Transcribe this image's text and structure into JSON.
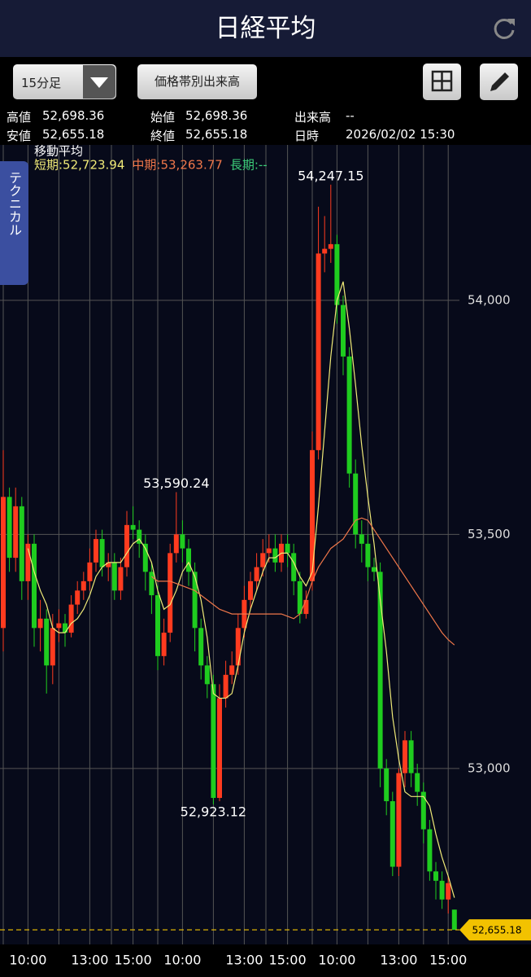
{
  "header": {
    "title": "日経平均"
  },
  "toolbar": {
    "interval": "15分足",
    "volume_button": "価格帯別出来高"
  },
  "info": {
    "rows": [
      [
        {
          "label": "高値",
          "value": "52,698.36"
        },
        {
          "label": "始値",
          "value": "52,698.36"
        },
        {
          "label": "出来高",
          "value": "--"
        }
      ],
      [
        {
          "label": "安値",
          "value": "52,655.18"
        },
        {
          "label": "終値",
          "value": "52,655.18"
        },
        {
          "label": "日時",
          "value": "2026/02/02 15:30"
        }
      ]
    ]
  },
  "side_tab": "テクニカル",
  "chart_data": {
    "type": "candlestick",
    "ma_title": "移動平均",
    "up_color": "#ff3b1f",
    "down_color": "#1fcc1f",
    "categories": [
      null,
      null,
      null,
      null,
      "10:00",
      null,
      null,
      null,
      null,
      null,
      null,
      null,
      null,
      null,
      "13:00",
      null,
      null,
      null,
      null,
      null,
      null,
      "15:00",
      null,
      null,
      null,
      null,
      null,
      null,
      null,
      "10:00",
      null,
      null,
      null,
      null,
      null,
      null,
      null,
      null,
      null,
      "13:00",
      null,
      null,
      null,
      null,
      null,
      null,
      "15:00",
      null,
      null,
      null,
      null,
      null,
      null,
      null,
      "10:00",
      null,
      null,
      null,
      null,
      null,
      null,
      null,
      null,
      null,
      "13:00",
      null,
      null,
      null,
      null,
      null,
      null,
      null,
      "15:00",
      null
    ],
    "open": [
      53300,
      53580,
      53450,
      53560,
      53400,
      53480,
      53300,
      53320,
      53220,
      53300,
      53310,
      53290,
      53350,
      53380,
      53400,
      53440,
      53490,
      53430,
      53440,
      53380,
      53430,
      53520,
      53510,
      53480,
      53420,
      53370,
      53240,
      53290,
      53460,
      53500,
      53470,
      53420,
      53300,
      53220,
      53180,
      52937,
      53150,
      53200,
      53220,
      53300,
      53360,
      53400,
      53430,
      53460,
      53470,
      53440,
      53480,
      53460,
      53400,
      53330,
      53400,
      53680,
      54100,
      54110,
      54120,
      53990,
      53880,
      53630,
      53500,
      53480,
      53430,
      53420,
      53000,
      52930,
      52790,
      52990,
      53060,
      52990,
      52950,
      52870,
      52780,
      52760,
      52720,
      52698.36
    ],
    "high": [
      53680,
      53600,
      53600,
      53580,
      53500,
      53500,
      53360,
      53340,
      53330,
      53340,
      53330,
      53370,
      53400,
      53420,
      53470,
      53510,
      53510,
      53460,
      53460,
      53450,
      53550,
      53560,
      53530,
      53500,
      53440,
      53390,
      53320,
      53480,
      53590.24,
      53530,
      53490,
      53440,
      53320,
      53240,
      53200,
      53180,
      53230,
      53250,
      53330,
      53390,
      53420,
      53460,
      53490,
      53500,
      53500,
      53500,
      53500,
      53480,
      53420,
      53380,
      53720,
      54200,
      54180,
      54247.15,
      54140,
      54010,
      53900,
      53660,
      53530,
      53500,
      53450,
      53440,
      53020,
      52950,
      53000,
      53080,
      53080,
      53010,
      52970,
      52890,
      52800,
      52780,
      52770,
      52698.36
    ],
    "low": [
      53250,
      53420,
      53420,
      53360,
      53360,
      53260,
      53250,
      53160,
      53180,
      53270,
      53260,
      53280,
      53330,
      53360,
      53380,
      53420,
      53410,
      53400,
      53360,
      53360,
      53410,
      53490,
      53450,
      53380,
      53330,
      53210,
      53220,
      53270,
      53440,
      53440,
      53390,
      53250,
      53190,
      53150,
      52923.12,
      52930,
      53130,
      53180,
      53200,
      53280,
      53340,
      53380,
      53410,
      53440,
      53420,
      53420,
      53430,
      53370,
      53310,
      53320,
      53380,
      53660,
      54060,
      54080,
      53950,
      53840,
      53600,
      53470,
      53440,
      53400,
      53400,
      52960,
      52900,
      52770,
      52770,
      52960,
      52960,
      52920,
      52840,
      52760,
      52720,
      52700,
      52690,
      52655.18
    ],
    "close": [
      53580,
      53450,
      53560,
      53400,
      53480,
      53300,
      53320,
      53220,
      53300,
      53310,
      53290,
      53350,
      53380,
      53400,
      53440,
      53490,
      53430,
      53440,
      53380,
      53430,
      53520,
      53510,
      53480,
      53420,
      53370,
      53240,
      53290,
      53460,
      53500,
      53470,
      53420,
      53300,
      53220,
      53180,
      52937,
      53150,
      53200,
      53220,
      53300,
      53360,
      53400,
      53430,
      53460,
      53470,
      53440,
      53480,
      53460,
      53400,
      53330,
      53360,
      53680,
      54100,
      54110,
      54120,
      53990,
      53880,
      53630,
      53500,
      53480,
      53430,
      53420,
      53000,
      52930,
      52790,
      52990,
      53060,
      52990,
      52950,
      52870,
      52780,
      52760,
      52720,
      52755,
      52655.18
    ],
    "series": [
      {
        "name": "短期:52,723.94",
        "color": "#f0ea78",
        "values": [
          null,
          null,
          null,
          null,
          53470,
          53420,
          53380,
          53350,
          53300,
          53290,
          53290,
          53310,
          53320,
          53340,
          53370,
          53410,
          53430,
          53440,
          53440,
          53440,
          53460,
          53480,
          53490,
          53470,
          53440,
          53380,
          53340,
          53350,
          53380,
          53420,
          53440,
          53410,
          53360,
          53280,
          53160,
          53150,
          53150,
          53160,
          53220,
          53290,
          53340,
          53380,
          53420,
          53450,
          53450,
          53460,
          53460,
          53440,
          53410,
          53390,
          53420,
          53560,
          53720,
          53880,
          54000,
          54040,
          53940,
          53820,
          53690,
          53580,
          53480,
          53360,
          53250,
          53110,
          53020,
          52950,
          52940,
          52940,
          52940,
          52920,
          52860,
          52810,
          52770,
          52723.94
        ]
      },
      {
        "name": "中期:53,263.77",
        "color": "#f0774a",
        "values": [
          null,
          null,
          null,
          null,
          null,
          null,
          null,
          null,
          null,
          null,
          null,
          null,
          null,
          null,
          null,
          null,
          null,
          null,
          null,
          null,
          null,
          null,
          null,
          null,
          53410,
          53400,
          53400,
          53400,
          53395,
          53390,
          53385,
          53380,
          53370,
          53360,
          53350,
          53340,
          53335,
          53330,
          53330,
          53330,
          53330,
          53330,
          53330,
          53330,
          53330,
          53330,
          53325,
          53320,
          53330,
          53360,
          53400,
          53430,
          53450,
          53470,
          53480,
          53490,
          53510,
          53530,
          53535,
          53530,
          53510,
          53490,
          53470,
          53450,
          53430,
          53410,
          53390,
          53370,
          53350,
          53330,
          53310,
          53290,
          53275,
          53263.77
        ]
      },
      {
        "name": "長期:--",
        "color": "#3ccf7a"
      }
    ],
    "annotations": [
      {
        "value": 54247.15,
        "label": "54,247.15"
      },
      {
        "value": 53590.24,
        "label": "53,590.24"
      },
      {
        "value": 52923.12,
        "label": "52,923.12"
      }
    ],
    "current_price": {
      "value": 52655.18,
      "label": "52,655.18"
    },
    "ylim": [
      52624,
      54332
    ],
    "yticks": [
      {
        "value": 53000,
        "label": "53,000"
      },
      {
        "value": 53500,
        "label": "53,500"
      },
      {
        "value": 54000,
        "label": "54,000"
      }
    ],
    "grid": true
  }
}
